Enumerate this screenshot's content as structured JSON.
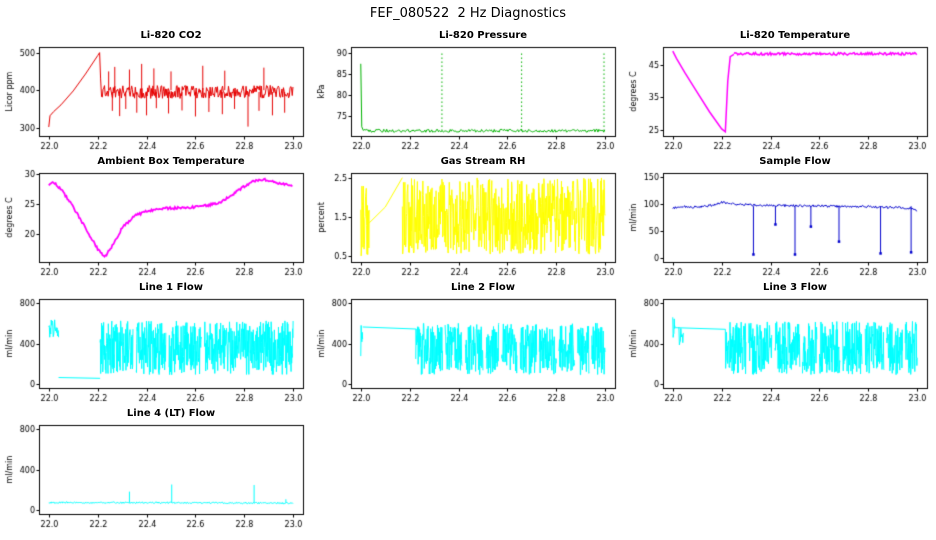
{
  "page_title": "FEF_080522  2 Hz Diagnostics",
  "axis_color": "#000000",
  "background": "#ffffff",
  "chart_data": [
    {
      "type": "line",
      "title": "Li-820 CO2",
      "ylabel": "Licor ppm",
      "xlabel": "",
      "color": "#e60000",
      "xlim": [
        21.96,
        23.04
      ],
      "ylim": [
        278,
        515
      ],
      "xticks": [
        22.0,
        22.2,
        22.4,
        22.6,
        22.8,
        23.0
      ],
      "yticks": [
        300,
        400,
        500
      ],
      "segments": [
        {
          "kind": "line",
          "lw": 1,
          "points": [
            [
              22.0,
              302
            ],
            [
              22.005,
              332
            ],
            [
              22.02,
              343
            ],
            [
              22.05,
              361
            ],
            [
              22.1,
              398
            ],
            [
              22.15,
              443
            ],
            [
              22.2,
              492
            ],
            [
              22.208,
              500
            ],
            [
              22.212,
              430
            ],
            [
              22.216,
              383
            ]
          ]
        },
        {
          "kind": "noise",
          "x0": 22.216,
          "x1": 23.0,
          "ymin": 378,
          "ymax": 413,
          "step": 0.003
        },
        {
          "kind": "spikes",
          "ybase": 395,
          "items": [
            [
              22.26,
              345
            ],
            [
              22.29,
              331
            ],
            [
              22.315,
              350
            ],
            [
              22.36,
              340
            ],
            [
              22.4,
              333
            ],
            [
              22.44,
              352
            ],
            [
              22.49,
              338
            ],
            [
              22.545,
              346
            ],
            [
              22.6,
              330
            ],
            [
              22.655,
              342
            ],
            [
              22.71,
              336
            ],
            [
              22.76,
              350
            ],
            [
              22.815,
              303
            ],
            [
              22.86,
              345
            ],
            [
              22.915,
              333
            ],
            [
              22.965,
              340
            ]
          ]
        },
        {
          "kind": "spikes",
          "ybase": 400,
          "items": [
            [
              22.245,
              450
            ],
            [
              22.27,
              462
            ],
            [
              22.33,
              455
            ],
            [
              22.38,
              470
            ],
            [
              22.43,
              458
            ],
            [
              22.5,
              450
            ],
            [
              22.63,
              465
            ],
            [
              22.72,
              452
            ],
            [
              22.88,
              460
            ]
          ]
        }
      ]
    },
    {
      "type": "line",
      "title": "Li-820 Pressure",
      "ylabel": "kPa",
      "xlabel": "",
      "color": "#00b300",
      "xlim": [
        21.96,
        23.04
      ],
      "ylim": [
        70.3,
        91.5
      ],
      "xticks": [
        22.0,
        22.2,
        22.4,
        22.6,
        22.8,
        23.0
      ],
      "yticks": [
        75,
        80,
        85,
        90
      ],
      "segments": [
        {
          "kind": "line",
          "lw": 1,
          "points": [
            [
              22.0,
              87.5
            ],
            [
              22.004,
              72.5
            ],
            [
              22.01,
              71.7
            ]
          ]
        },
        {
          "kind": "noise",
          "x0": 22.01,
          "x1": 23.0,
          "ymin": 71.2,
          "ymax": 71.9,
          "step": 0.004
        },
        {
          "kind": "spikes",
          "ybase": 71.5,
          "dotted": true,
          "items": [
            [
              22.332,
              90
            ],
            [
              22.658,
              90
            ],
            [
              22.995,
              90
            ]
          ]
        }
      ]
    },
    {
      "type": "line",
      "title": "Li-820 Temperature",
      "ylabel": "degrees C",
      "xlabel": "",
      "color": "#ff00ff",
      "xlim": [
        21.96,
        23.04
      ],
      "ylim": [
        23,
        50.5
      ],
      "xticks": [
        22.0,
        22.2,
        22.4,
        22.6,
        22.8,
        23.0
      ],
      "yticks": [
        25,
        35,
        45
      ],
      "segments": [
        {
          "kind": "line",
          "lw": 1.5,
          "points": [
            [
              22.0,
              49.2
            ],
            [
              22.015,
              47.0
            ],
            [
              22.05,
              42.5
            ],
            [
              22.1,
              36.5
            ],
            [
              22.15,
              30.5
            ],
            [
              22.2,
              25.2
            ],
            [
              22.215,
              24.3
            ],
            [
              22.225,
              40.0
            ],
            [
              22.235,
              47.5
            ],
            [
              22.25,
              48.2
            ]
          ]
        },
        {
          "kind": "noise",
          "lw": 1.5,
          "x0": 22.25,
          "x1": 23.0,
          "ymin": 48.0,
          "ymax": 48.8,
          "step": 0.004
        }
      ]
    },
    {
      "type": "line",
      "title": "Ambient Box Temperature",
      "ylabel": "degrees C",
      "xlabel": "",
      "color": "#ff00ff",
      "xlim": [
        21.96,
        23.04
      ],
      "ylim": [
        15.3,
        30.2
      ],
      "xticks": [
        22.0,
        22.2,
        22.4,
        22.6,
        22.8,
        23.0
      ],
      "yticks": [
        20,
        25,
        30
      ],
      "segments": [
        {
          "kind": "jline",
          "lw": 1.8,
          "jitter": 0.2,
          "step": 0.004,
          "points": [
            [
              22.0,
              28.3
            ],
            [
              22.02,
              28.6
            ],
            [
              22.05,
              27.5
            ],
            [
              22.1,
              24.5
            ],
            [
              22.15,
              21.0
            ],
            [
              22.2,
              17.5
            ],
            [
              22.23,
              16.2
            ],
            [
              22.26,
              18.0
            ],
            [
              22.3,
              21.0
            ],
            [
              22.35,
              23.0
            ],
            [
              22.4,
              23.8
            ],
            [
              22.45,
              24.2
            ],
            [
              22.5,
              24.3
            ],
            [
              22.55,
              24.4
            ],
            [
              22.6,
              24.5
            ],
            [
              22.65,
              24.8
            ],
            [
              22.7,
              25.3
            ],
            [
              22.75,
              26.5
            ],
            [
              22.8,
              28.0
            ],
            [
              22.84,
              28.9
            ],
            [
              22.88,
              29.1
            ],
            [
              22.92,
              28.8
            ],
            [
              22.96,
              28.3
            ],
            [
              23.0,
              28.0
            ]
          ]
        }
      ]
    },
    {
      "type": "line",
      "title": "Gas Stream RH",
      "ylabel": "percent",
      "xlabel": "",
      "color": "#ffff00",
      "xlim": [
        21.96,
        23.04
      ],
      "ylim": [
        0.35,
        2.62
      ],
      "xticks": [
        22.0,
        22.2,
        22.4,
        22.6,
        22.8,
        23.0
      ],
      "yticks": [
        0.5,
        1.5,
        2.5
      ],
      "segments": [
        {
          "kind": "noise",
          "x0": 22.0,
          "x1": 22.035,
          "ymin": 0.5,
          "ymax": 2.4,
          "step": 0.0015
        },
        {
          "kind": "line",
          "lw": 1,
          "points": [
            [
              22.035,
              1.35
            ],
            [
              22.1,
              1.75
            ],
            [
              22.17,
              2.5
            ]
          ]
        },
        {
          "kind": "noise",
          "x0": 22.17,
          "x1": 23.0,
          "ymin": 0.55,
          "ymax": 2.5,
          "step": 0.0015
        }
      ]
    },
    {
      "type": "line",
      "title": "Sample Flow",
      "ylabel": "ml/min",
      "xlabel": "",
      "color": "#0000cd",
      "xlim": [
        21.96,
        23.04
      ],
      "ylim": [
        -8,
        158
      ],
      "xticks": [
        22.0,
        22.2,
        22.4,
        22.6,
        22.8,
        23.0
      ],
      "yticks": [
        0,
        50,
        100,
        150
      ],
      "segments": [
        {
          "kind": "jline",
          "lw": 1,
          "jitter": 2.2,
          "step": 0.0035,
          "points": [
            [
              22.0,
              92
            ],
            [
              22.04,
              96
            ],
            [
              22.08,
              94
            ],
            [
              22.12,
              96
            ],
            [
              22.16,
              98
            ],
            [
              22.2,
              104
            ],
            [
              22.25,
              100
            ],
            [
              22.35,
              98
            ],
            [
              22.5,
              97
            ],
            [
              22.65,
              96
            ],
            [
              22.8,
              95
            ],
            [
              22.9,
              94
            ],
            [
              22.97,
              92
            ],
            [
              23.0,
              88
            ]
          ]
        },
        {
          "kind": "spikes",
          "ybase": 96,
          "dot": true,
          "items": [
            [
              22.33,
              6
            ],
            [
              22.42,
              62
            ],
            [
              22.5,
              6
            ],
            [
              22.565,
              58
            ],
            [
              22.68,
              30
            ],
            [
              22.85,
              8
            ],
            [
              22.975,
              10
            ]
          ]
        }
      ]
    },
    {
      "type": "line",
      "title": "Line 1 Flow",
      "ylabel": "ml/min",
      "xlabel": "",
      "color": "#00ffff",
      "xlim": [
        21.96,
        23.04
      ],
      "ylim": [
        -35,
        840
      ],
      "xticks": [
        22.0,
        22.2,
        22.4,
        22.6,
        22.8,
        23.0
      ],
      "yticks": [
        0,
        400,
        800
      ],
      "segments": [
        {
          "kind": "noise",
          "x0": 22.0,
          "x1": 22.04,
          "ymin": 460,
          "ymax": 640,
          "step": 0.002
        },
        {
          "kind": "line",
          "lw": 1,
          "points": [
            [
              22.04,
              68
            ],
            [
              22.21,
              60
            ]
          ]
        },
        {
          "kind": "noise",
          "x0": 22.21,
          "x1": 23.0,
          "ymin": 95,
          "ymax": 625,
          "step": 0.0012,
          "gaps": [
            [
              22.345,
              22.357
            ],
            [
              22.48,
              22.492
            ],
            [
              22.625,
              22.637
            ]
          ]
        }
      ]
    },
    {
      "type": "line",
      "title": "Line 2 Flow",
      "ylabel": "ml/min",
      "xlabel": "",
      "color": "#00ffff",
      "xlim": [
        21.96,
        23.04
      ],
      "ylim": [
        -35,
        840
      ],
      "xticks": [
        22.0,
        22.2,
        22.4,
        22.6,
        22.8,
        23.0
      ],
      "yticks": [
        0,
        400,
        800
      ],
      "segments": [
        {
          "kind": "noise",
          "x0": 22.0,
          "x1": 22.008,
          "ymin": 120,
          "ymax": 640,
          "step": 0.0015
        },
        {
          "kind": "line",
          "lw": 1,
          "points": [
            [
              22.008,
              565
            ],
            [
              22.225,
              545
            ]
          ]
        },
        {
          "kind": "noise",
          "x0": 22.225,
          "x1": 23.0,
          "ymin": 95,
          "ymax": 605,
          "step": 0.0012,
          "gaps": [
            [
              22.335,
              22.345
            ],
            [
              22.415,
              22.427
            ],
            [
              22.5,
              22.512
            ],
            [
              22.565,
              22.576
            ],
            [
              22.64,
              22.652
            ],
            [
              22.72,
              22.73
            ],
            [
              22.8,
              22.81
            ],
            [
              22.875,
              22.887
            ],
            [
              22.935,
              22.945
            ]
          ]
        }
      ]
    },
    {
      "type": "line",
      "title": "Line 3 Flow",
      "ylabel": "ml/min",
      "xlabel": "",
      "color": "#00ffff",
      "xlim": [
        21.96,
        23.04
      ],
      "ylim": [
        -35,
        840
      ],
      "xticks": [
        22.0,
        22.2,
        22.4,
        22.6,
        22.8,
        23.0
      ],
      "yticks": [
        0,
        400,
        800
      ],
      "segments": [
        {
          "kind": "noise",
          "x0": 22.0,
          "x1": 22.01,
          "ymin": 430,
          "ymax": 700,
          "step": 0.0015
        },
        {
          "kind": "line",
          "lw": 1,
          "points": [
            [
              22.01,
              558
            ],
            [
              22.215,
              542
            ]
          ]
        },
        {
          "kind": "noise",
          "x0": 22.025,
          "x1": 22.045,
          "ymin": 360,
          "ymax": 600,
          "step": 0.002
        },
        {
          "kind": "noise",
          "x0": 22.215,
          "x1": 23.0,
          "ymin": 95,
          "ymax": 620,
          "step": 0.0012,
          "gaps": [
            [
              22.3,
              22.31
            ],
            [
              22.405,
              22.417
            ],
            [
              22.52,
              22.53
            ],
            [
              22.59,
              22.6
            ],
            [
              22.685,
              22.695
            ],
            [
              22.775,
              22.787
            ],
            [
              22.865,
              22.875
            ],
            [
              22.94,
              22.95
            ]
          ]
        }
      ]
    },
    {
      "type": "line",
      "title": "Line 4 (LT) Flow",
      "ylabel": "ml/min",
      "xlabel": "",
      "color": "#00ffff",
      "xlim": [
        21.96,
        23.04
      ],
      "ylim": [
        -35,
        840
      ],
      "xticks": [
        22.0,
        22.2,
        22.4,
        22.6,
        22.8,
        23.0
      ],
      "yticks": [
        0,
        400,
        800
      ],
      "segments": [
        {
          "kind": "jline",
          "lw": 1,
          "jitter": 8,
          "step": 0.003,
          "points": [
            [
              22.0,
              78
            ],
            [
              23.0,
              72
            ]
          ]
        },
        {
          "kind": "spikes",
          "ybase": 75,
          "items": [
            [
              22.33,
              185
            ],
            [
              22.503,
              255
            ],
            [
              22.84,
              250
            ],
            [
              22.97,
              110
            ]
          ]
        }
      ]
    }
  ]
}
